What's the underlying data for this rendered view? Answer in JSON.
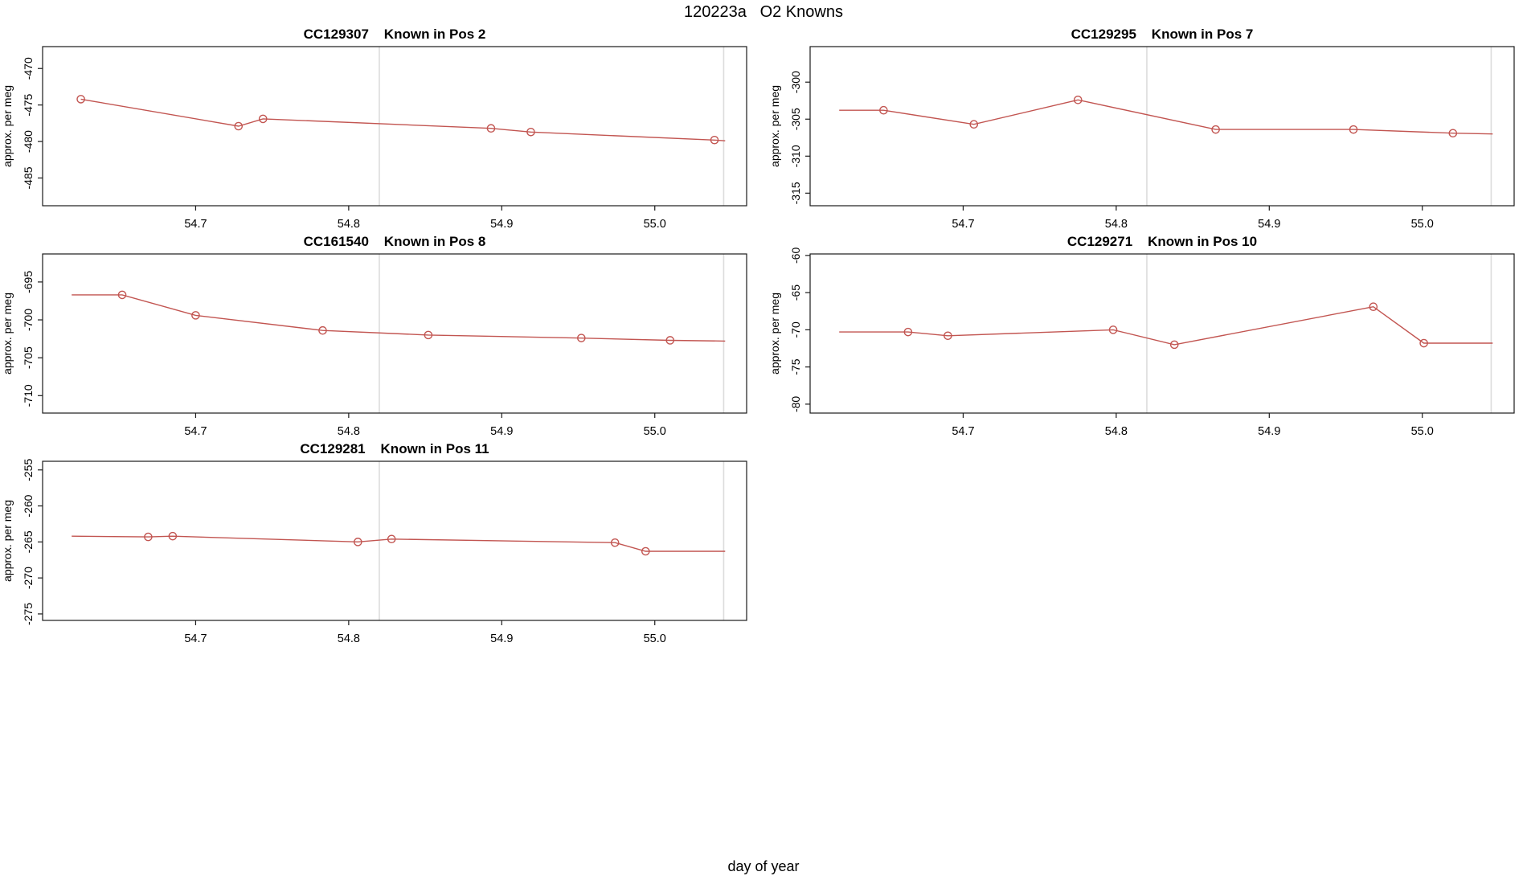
{
  "figure": {
    "title": "120223a   O2 Knowns",
    "xlabel": "day of year",
    "ylabel": "approx. per meg",
    "line_color": "#c25551",
    "gridline_color": "#dcdcdc",
    "axis_color": "#1a1a1a"
  },
  "chart_data": [
    {
      "type": "line",
      "title": "CC129307    Known in Pos 2",
      "sample_id": "CC129307",
      "position_label": "Known in Pos 2",
      "xlabel": "day of year",
      "ylabel": "approx. per meg",
      "xlim": [
        54.6,
        55.06
      ],
      "ylim": [
        -488.8,
        -467.0
      ],
      "x_ticks": [
        54.7,
        54.8,
        54.9,
        55.0
      ],
      "y_ticks": [
        -485,
        -480,
        -475,
        -470
      ],
      "gridlines_x": [
        54.82,
        55.045
      ],
      "marker": "open-circle",
      "grid_cell": [
        0,
        0
      ],
      "x": [
        54.625,
        54.728,
        54.744,
        54.893,
        54.919,
        55.039
      ],
      "y": [
        -474.2,
        -477.9,
        -476.9,
        -478.2,
        -478.7,
        -479.8
      ],
      "line_end": [
        55.046,
        -479.9
      ]
    },
    {
      "type": "line",
      "title": "CC129295    Known in Pos 7",
      "sample_id": "CC129295",
      "position_label": "Known in Pos 7",
      "xlabel": "day of year",
      "ylabel": "approx. per meg",
      "xlim": [
        54.6,
        55.06
      ],
      "ylim": [
        -316.7,
        -295.2
      ],
      "x_ticks": [
        54.7,
        54.8,
        54.9,
        55.0
      ],
      "y_ticks": [
        -315,
        -310,
        -305,
        -300
      ],
      "gridlines_x": [
        54.82,
        55.045
      ],
      "marker": "open-circle",
      "grid_cell": [
        0,
        1
      ],
      "line_start": [
        54.619,
        -303.8
      ],
      "x": [
        54.648,
        54.707,
        54.775,
        54.865,
        54.955,
        55.02
      ],
      "y": [
        -303.8,
        -305.7,
        -302.4,
        -306.4,
        -306.4,
        -306.9
      ],
      "line_end": [
        55.046,
        -307.0
      ]
    },
    {
      "type": "line",
      "title": "CC161540    Known in Pos 8",
      "sample_id": "CC161540",
      "position_label": "Known in Pos 8",
      "xlabel": "day of year",
      "ylabel": "approx. per meg",
      "xlim": [
        54.6,
        55.06
      ],
      "ylim": [
        -712.3,
        -691.3
      ],
      "x_ticks": [
        54.7,
        54.8,
        54.9,
        55.0
      ],
      "y_ticks": [
        -710,
        -705,
        -700,
        -695
      ],
      "gridlines_x": [
        54.82,
        55.045
      ],
      "marker": "open-circle",
      "grid_cell": [
        1,
        0
      ],
      "line_start": [
        54.619,
        -696.7
      ],
      "x": [
        54.652,
        54.7,
        54.783,
        54.852,
        54.952,
        55.01
      ],
      "y": [
        -696.7,
        -699.4,
        -701.4,
        -702.0,
        -702.4,
        -702.7
      ],
      "line_end": [
        55.046,
        -702.8
      ]
    },
    {
      "type": "line",
      "title": "CC129271    Known in Pos 10",
      "sample_id": "CC129271",
      "position_label": "Known in Pos 10",
      "xlabel": "day of year",
      "ylabel": "approx. per meg",
      "xlim": [
        54.6,
        55.06
      ],
      "ylim": [
        -81.2,
        -59.8
      ],
      "x_ticks": [
        54.7,
        54.8,
        54.9,
        55.0
      ],
      "y_ticks": [
        -80,
        -75,
        -70,
        -65,
        -60
      ],
      "gridlines_x": [
        54.82,
        55.045
      ],
      "marker": "open-circle",
      "grid_cell": [
        1,
        1
      ],
      "line_start": [
        54.619,
        -70.3
      ],
      "x": [
        54.664,
        54.69,
        54.798,
        54.838,
        54.968,
        55.001
      ],
      "y": [
        -70.3,
        -70.8,
        -70.0,
        -72.0,
        -66.9,
        -71.8
      ],
      "line_end": [
        55.046,
        -71.8
      ]
    },
    {
      "type": "line",
      "title": "CC129281    Known in Pos 11",
      "sample_id": "CC129281",
      "position_label": "Known in Pos 11",
      "xlabel": "day of year",
      "ylabel": "approx. per meg",
      "xlim": [
        54.6,
        55.06
      ],
      "ylim": [
        -275.9,
        -253.8
      ],
      "x_ticks": [
        54.7,
        54.8,
        54.9,
        55.0
      ],
      "y_ticks": [
        -275,
        -270,
        -265,
        -260,
        -255
      ],
      "gridlines_x": [
        54.82,
        55.045
      ],
      "marker": "open-circle",
      "grid_cell": [
        2,
        0
      ],
      "line_start": [
        54.619,
        -264.2
      ],
      "x": [
        54.669,
        54.685,
        54.806,
        54.828,
        54.974,
        54.994
      ],
      "y": [
        -264.3,
        -264.2,
        -265.0,
        -264.6,
        -265.1,
        -266.3
      ],
      "line_end": [
        55.046,
        -266.3
      ]
    }
  ]
}
